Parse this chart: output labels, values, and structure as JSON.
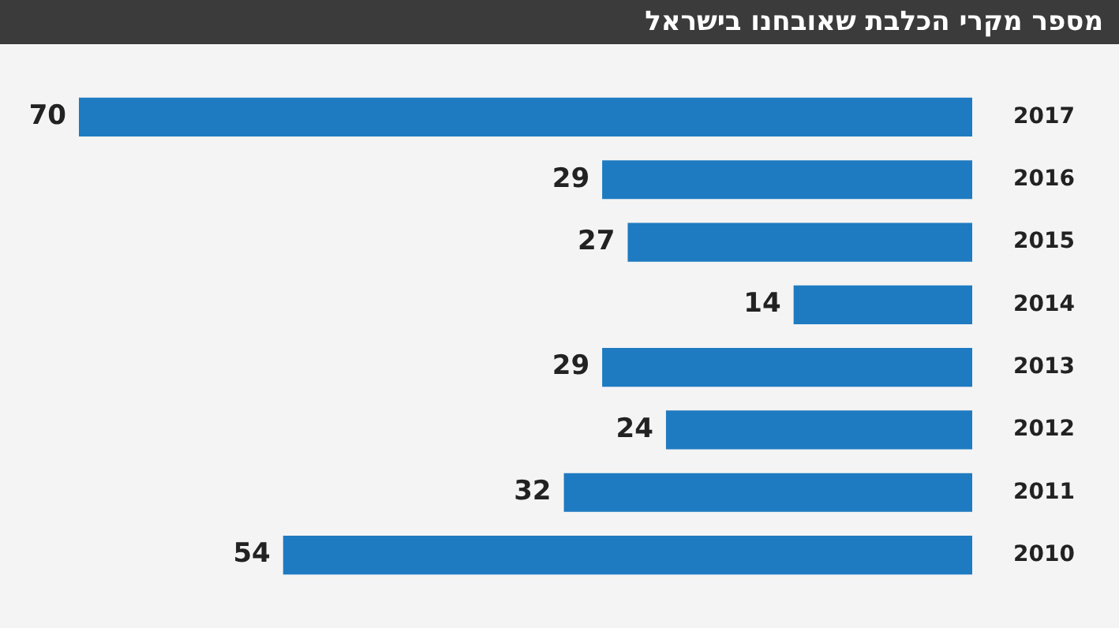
{
  "chart_data": {
    "type": "bar",
    "orientation": "horizontal",
    "title": "מספר מקרי הכלבת שאובחנו בישראל",
    "categories": [
      "2017",
      "2016",
      "2015",
      "2014",
      "2013",
      "2012",
      "2011",
      "2010"
    ],
    "values": [
      70,
      29,
      27,
      14,
      29,
      24,
      32,
      54
    ],
    "color": "#1f7bc1",
    "xlim": [
      70,
      0
    ],
    "data_labels": true
  }
}
